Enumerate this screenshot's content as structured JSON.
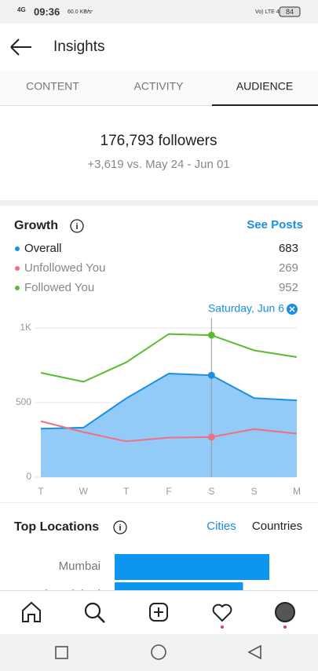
{
  "status_bar": {
    "network": "4G",
    "time": "09:36",
    "speed": "60.0 KB/s",
    "dots": "···",
    "right": "Vo) LTE 4G",
    "battery": "84"
  },
  "header": {
    "title": "Insights"
  },
  "tabs": [
    "CONTENT",
    "ACTIVITY",
    "AUDIENCE"
  ],
  "summary": {
    "followers": "176,793 followers",
    "change": "+3,619 vs. May 24 - Jun 01"
  },
  "growth": {
    "title": "Growth",
    "link": "See Posts",
    "cursor_label": "Saturday, Jun 6"
  },
  "chart_data": {
    "type": "line",
    "categories": [
      "T",
      "W",
      "T",
      "F",
      "S",
      "S",
      "M"
    ],
    "series": [
      {
        "name": "Overall",
        "color": "#1a8fe3",
        "area": "#92cbf7",
        "values": [
          325,
          332,
          528,
          695,
          683,
          530,
          515
        ]
      },
      {
        "name": "Unfollowed You",
        "color": "#f0707e",
        "values": [
          375,
          302,
          240,
          265,
          269,
          322,
          292
        ]
      },
      {
        "name": "Followed You",
        "color": "#5dbb2f",
        "values": [
          700,
          640,
          770,
          960,
          952,
          850,
          805
        ]
      }
    ],
    "selected": 4,
    "ylim": [
      0,
      1000
    ],
    "yticks": [
      0,
      500,
      {
        "value": 1000,
        "label": "1K"
      }
    ],
    "grid": true
  },
  "locations": {
    "title": "Top Locations",
    "tabs": [
      "Cities",
      "Countries"
    ],
    "chart_data": {
      "type": "bar",
      "categories": [
        "Mumbai",
        "Ahmedabad"
      ],
      "values": [
        100,
        83
      ],
      "color": "#0d95f2"
    }
  }
}
